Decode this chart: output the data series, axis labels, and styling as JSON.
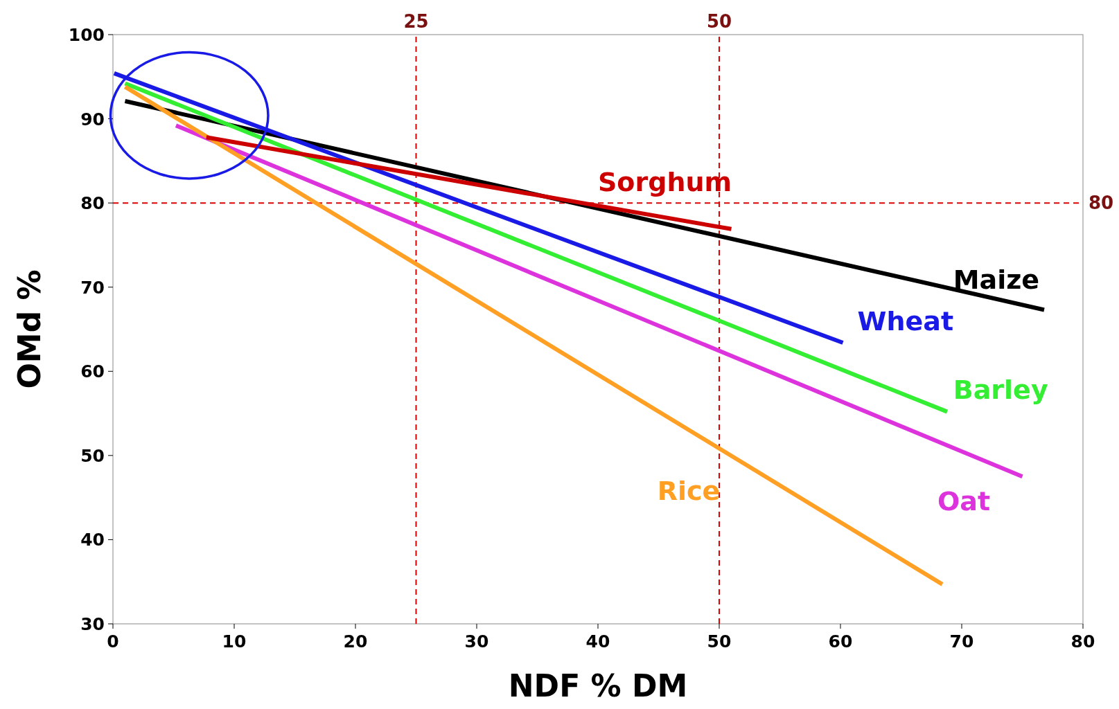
{
  "chart_data": {
    "type": "line",
    "xlabel": "NDF % DM",
    "ylabel": "OMd %",
    "xlim": [
      0,
      80
    ],
    "ylim": [
      30,
      100
    ],
    "xticks": [
      0,
      10,
      20,
      30,
      40,
      50,
      60,
      70,
      80
    ],
    "yticks": [
      30,
      40,
      50,
      60,
      70,
      80,
      90,
      100
    ],
    "grid": false,
    "marker": "none",
    "line_style": "solid",
    "series": [
      {
        "name": "Maize",
        "color": "#000000",
        "x": [
          1,
          76.8
        ],
        "values": [
          92.1,
          67.3
        ]
      },
      {
        "name": "Wheat",
        "color": "#1a1ae6",
        "x": [
          0.1,
          60.2
        ],
        "values": [
          95.4,
          63.4
        ]
      },
      {
        "name": "Barley",
        "color": "#33ee33",
        "x": [
          1,
          68.8
        ],
        "values": [
          94.2,
          55.2
        ]
      },
      {
        "name": "Oat",
        "color": "#dd33dd",
        "x": [
          5.2,
          75
        ],
        "values": [
          89.2,
          47.5
        ]
      },
      {
        "name": "Rice",
        "color": "#ffa024",
        "x": [
          1,
          68.4
        ],
        "values": [
          93.8,
          34.7
        ]
      },
      {
        "name": "Sorghum",
        "color": "#cc0000",
        "x": [
          7.7,
          51
        ],
        "values": [
          87.8,
          76.9
        ]
      }
    ],
    "ref_lines": [
      {
        "axis": "x",
        "value": 25,
        "label": "25",
        "color": "#dd0000",
        "line_style": "dashed"
      },
      {
        "axis": "x",
        "value": 50,
        "label": "50",
        "color": "#dd0000",
        "line_style": "dashed"
      },
      {
        "axis": "y",
        "value": 80,
        "label": "80",
        "color": "#dd0000",
        "line_style": "dashed"
      }
    ]
  }
}
